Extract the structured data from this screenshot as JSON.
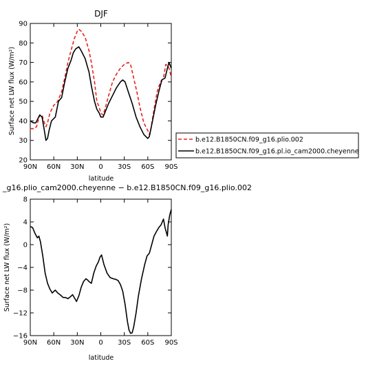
{
  "chart_data": [
    {
      "type": "line",
      "title": "DJF",
      "xlabel": "",
      "ylabel": "Surface net LW flux (W/m²)",
      "x_ticks": [
        90,
        60,
        30,
        0,
        -30,
        -60,
        -90
      ],
      "x_tick_labels": [
        "90N",
        "60N",
        "30N",
        "0",
        "30S",
        "60S",
        "90S"
      ],
      "xlim": [
        90,
        -90
      ],
      "ylim": [
        20,
        90
      ],
      "y_ticks": [
        20,
        30,
        40,
        50,
        60,
        70,
        80,
        90
      ],
      "y_tick_labels": [
        "20",
        "30",
        "40",
        "50",
        "60",
        "70",
        "80",
        "90"
      ],
      "grid": false,
      "legend_placement": "right",
      "series": [
        {
          "name": "b.e12.B1850CN.f09_g16.plio.002",
          "color": "#e8211b",
          "dash": "dashed",
          "points": [
            [
              90,
              36
            ],
            [
              85,
              36
            ],
            [
              82,
              37
            ],
            [
              78,
              43
            ],
            [
              75,
              43
            ],
            [
              72,
              39
            ],
            [
              70,
              37
            ],
            [
              68,
              39
            ],
            [
              65,
              44
            ],
            [
              60,
              48
            ],
            [
              55,
              50
            ],
            [
              50,
              55
            ],
            [
              45,
              64
            ],
            [
              42,
              70
            ],
            [
              38,
              76
            ],
            [
              34,
              82
            ],
            [
              30,
              86
            ],
            [
              28,
              87
            ],
            [
              25,
              86
            ],
            [
              20,
              83
            ],
            [
              15,
              76
            ],
            [
              12,
              70
            ],
            [
              8,
              60
            ],
            [
              5,
              50
            ],
            [
              2,
              47
            ],
            [
              0,
              44
            ],
            [
              -3,
              43
            ],
            [
              -6,
              47
            ],
            [
              -10,
              53
            ],
            [
              -15,
              60
            ],
            [
              -20,
              64
            ],
            [
              -25,
              67
            ],
            [
              -30,
              69
            ],
            [
              -35,
              70
            ],
            [
              -38,
              69
            ],
            [
              -42,
              62
            ],
            [
              -46,
              55
            ],
            [
              -50,
              47
            ],
            [
              -55,
              39
            ],
            [
              -60,
              35
            ],
            [
              -62,
              33
            ],
            [
              -64,
              36
            ],
            [
              -68,
              46
            ],
            [
              -72,
              55
            ],
            [
              -76,
              60
            ],
            [
              -80,
              62
            ],
            [
              -83,
              69
            ],
            [
              -86,
              68
            ],
            [
              -88,
              66
            ],
            [
              -90,
              62
            ]
          ]
        },
        {
          "name": "b.e12.B1850CN.f09_g16.pl.io_cam2000.cheyenne",
          "color": "#000000",
          "dash": "solid",
          "points": [
            [
              90,
              40
            ],
            [
              86,
              39
            ],
            [
              83,
              39
            ],
            [
              78,
              43
            ],
            [
              75,
              42
            ],
            [
              72,
              35
            ],
            [
              70,
              30
            ],
            [
              68,
              31
            ],
            [
              66,
              35
            ],
            [
              63,
              40
            ],
            [
              58,
              42
            ],
            [
              54,
              50
            ],
            [
              50,
              52
            ],
            [
              46,
              60
            ],
            [
              42,
              67
            ],
            [
              38,
              71
            ],
            [
              35,
              75
            ],
            [
              32,
              77
            ],
            [
              28,
              78
            ],
            [
              25,
              76
            ],
            [
              20,
              72
            ],
            [
              15,
              65
            ],
            [
              12,
              58
            ],
            [
              8,
              50
            ],
            [
              5,
              46
            ],
            [
              2,
              44
            ],
            [
              0,
              42
            ],
            [
              -3,
              42
            ],
            [
              -6,
              45
            ],
            [
              -10,
              49
            ],
            [
              -15,
              53
            ],
            [
              -20,
              57
            ],
            [
              -25,
              60
            ],
            [
              -28,
              61
            ],
            [
              -31,
              60
            ],
            [
              -35,
              55
            ],
            [
              -40,
              49
            ],
            [
              -45,
              42
            ],
            [
              -50,
              37
            ],
            [
              -55,
              33
            ],
            [
              -60,
              31
            ],
            [
              -62,
              32
            ],
            [
              -66,
              40
            ],
            [
              -70,
              48
            ],
            [
              -74,
              55
            ],
            [
              -78,
              61
            ],
            [
              -82,
              62
            ],
            [
              -85,
              67
            ],
            [
              -87,
              70
            ],
            [
              -89,
              68
            ],
            [
              -90,
              67
            ]
          ]
        }
      ]
    },
    {
      "type": "line",
      "title": "_g16.plio_cam2000.cheyenne − b.e12.B1850CN.f09_g16.plio.002",
      "xlabel": "latitude",
      "ylabel": "Surface net LW flux (W/m²)",
      "x_ticks": [
        90,
        60,
        30,
        0,
        -30,
        -60,
        -90
      ],
      "x_tick_labels": [
        "90N",
        "60N",
        "30N",
        "0",
        "30S",
        "60S",
        "90S"
      ],
      "xlim": [
        90,
        -90
      ],
      "ylim": [
        -16,
        8
      ],
      "y_ticks": [
        -16,
        -12,
        -8,
        -4,
        0,
        4,
        8
      ],
      "y_tick_labels": [
        "−16",
        "−12",
        "−8",
        "−4",
        "0",
        "4",
        "8"
      ],
      "grid": false,
      "series": [
        {
          "color": "#000000",
          "dash": "solid",
          "points": [
            [
              90,
              3.2
            ],
            [
              87,
              3.0
            ],
            [
              84,
              2.0
            ],
            [
              81,
              1.2
            ],
            [
              79,
              1.5
            ],
            [
              77,
              0.5
            ],
            [
              74,
              -2
            ],
            [
              71,
              -5
            ],
            [
              68,
              -6.8
            ],
            [
              65,
              -7.8
            ],
            [
              62,
              -8.5
            ],
            [
              58,
              -8.0
            ],
            [
              55,
              -8.5
            ],
            [
              52,
              -8.8
            ],
            [
              48,
              -9.3
            ],
            [
              45,
              -9.3
            ],
            [
              42,
              -9.5
            ],
            [
              39,
              -9.2
            ],
            [
              36,
              -8.8
            ],
            [
              33,
              -9.5
            ],
            [
              31,
              -10
            ],
            [
              28,
              -9
            ],
            [
              25,
              -7.5
            ],
            [
              22,
              -6.5
            ],
            [
              19,
              -6
            ],
            [
              17,
              -6.2
            ],
            [
              15,
              -6.5
            ],
            [
              12,
              -6.8
            ],
            [
              9,
              -5
            ],
            [
              6,
              -3.8
            ],
            [
              3,
              -3
            ],
            [
              1,
              -2.2
            ],
            [
              -1,
              -1.8
            ],
            [
              -4,
              -3.5
            ],
            [
              -8,
              -5
            ],
            [
              -12,
              -5.8
            ],
            [
              -16,
              -6
            ],
            [
              -19,
              -6.1
            ],
            [
              -22,
              -6.3
            ],
            [
              -25,
              -7
            ],
            [
              -28,
              -8.2
            ],
            [
              -31,
              -10.5
            ],
            [
              -34,
              -13.5
            ],
            [
              -36,
              -15
            ],
            [
              -38,
              -15.6
            ],
            [
              -40,
              -15.5
            ],
            [
              -42,
              -14.5
            ],
            [
              -45,
              -12
            ],
            [
              -48,
              -9
            ],
            [
              -52,
              -6
            ],
            [
              -56,
              -3.5
            ],
            [
              -59,
              -2
            ],
            [
              -62,
              -1.5
            ],
            [
              -65,
              0
            ],
            [
              -68,
              1.5
            ],
            [
              -71,
              2.3
            ],
            [
              -74,
              3.0
            ],
            [
              -77,
              3.5
            ],
            [
              -80,
              4.5
            ],
            [
              -82,
              3.0
            ],
            [
              -84,
              2.0
            ],
            [
              -85,
              1.5
            ],
            [
              -86,
              3.5
            ],
            [
              -88,
              5.2
            ],
            [
              -90,
              6.2
            ]
          ]
        }
      ]
    }
  ]
}
